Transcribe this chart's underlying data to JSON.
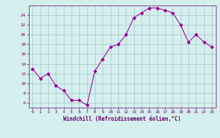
{
  "x": [
    0,
    1,
    2,
    3,
    4,
    5,
    6,
    7,
    8,
    9,
    10,
    11,
    12,
    13,
    14,
    15,
    16,
    17,
    18,
    19,
    20,
    21,
    22,
    23
  ],
  "y": [
    13,
    11,
    12,
    9.5,
    8.5,
    6.5,
    6.5,
    5.5,
    12.5,
    15,
    17.5,
    18,
    20,
    23.5,
    24.5,
    25.5,
    25.5,
    25,
    24.5,
    22,
    18.5,
    20,
    18.5,
    17.5
  ],
  "line_color": "#990099",
  "marker": "D",
  "marker_size": 2,
  "bg_color": "#d5eeee",
  "grid_color": "#aacccc",
  "xlabel": "Windchill (Refroidissement éolien,°C)",
  "xlabel_color": "#660066",
  "tick_color": "#660066",
  "ylim": [
    5,
    26
  ],
  "yticks": [
    6,
    8,
    10,
    12,
    14,
    16,
    18,
    20,
    22,
    24
  ],
  "xlim": [
    -0.5,
    23.5
  ],
  "tick_fontsize": 4.5,
  "xlabel_fontsize": 5.5
}
